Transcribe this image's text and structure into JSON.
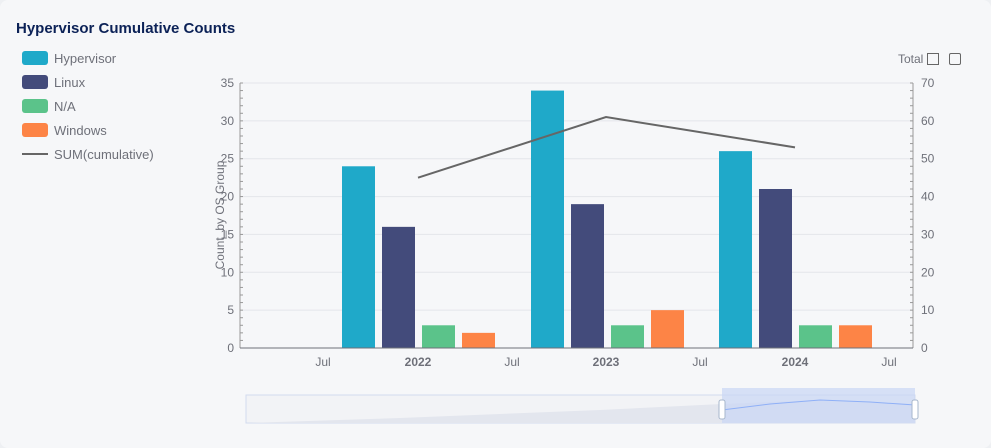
{
  "chart_data": {
    "type": "bar",
    "title": "Hypervisor Cumulative Counts",
    "categories": [
      "2022",
      "2023",
      "2024"
    ],
    "x_tick_labels": [
      "Jul",
      "2022",
      "Jul",
      "2023",
      "Jul",
      "2024",
      "Jul"
    ],
    "series": [
      {
        "name": "Hypervisor",
        "type": "bar",
        "color": "#1fa9c9",
        "values": [
          24,
          34,
          26
        ]
      },
      {
        "name": "Linux",
        "type": "bar",
        "color": "#434b7b",
        "values": [
          16,
          19,
          21
        ]
      },
      {
        "name": "N/A",
        "type": "bar",
        "color": "#5bc38a",
        "values": [
          3,
          3,
          3
        ]
      },
      {
        "name": "Windows",
        "type": "bar",
        "color": "#fd8446",
        "values": [
          2,
          5,
          3
        ]
      },
      {
        "name": "SUM(cumulative)",
        "type": "line",
        "color": "#666666",
        "axis": "right",
        "values": [
          45,
          61,
          53
        ]
      }
    ],
    "ylabel": "Count_by OS Group",
    "ylabel_right": "Total",
    "ylim": [
      0,
      35
    ],
    "ylim_right": [
      0,
      70
    ],
    "yticks": [
      0,
      5,
      10,
      15,
      20,
      25,
      30,
      35
    ],
    "yticks_right": [
      0,
      10,
      20,
      30,
      40,
      50,
      60,
      70
    ],
    "grid": true,
    "legend_position": "top-left"
  },
  "toolbar": {
    "total_label": "Total"
  },
  "icons": {
    "zoom": "zoom-icon",
    "restore": "restore-icon"
  }
}
